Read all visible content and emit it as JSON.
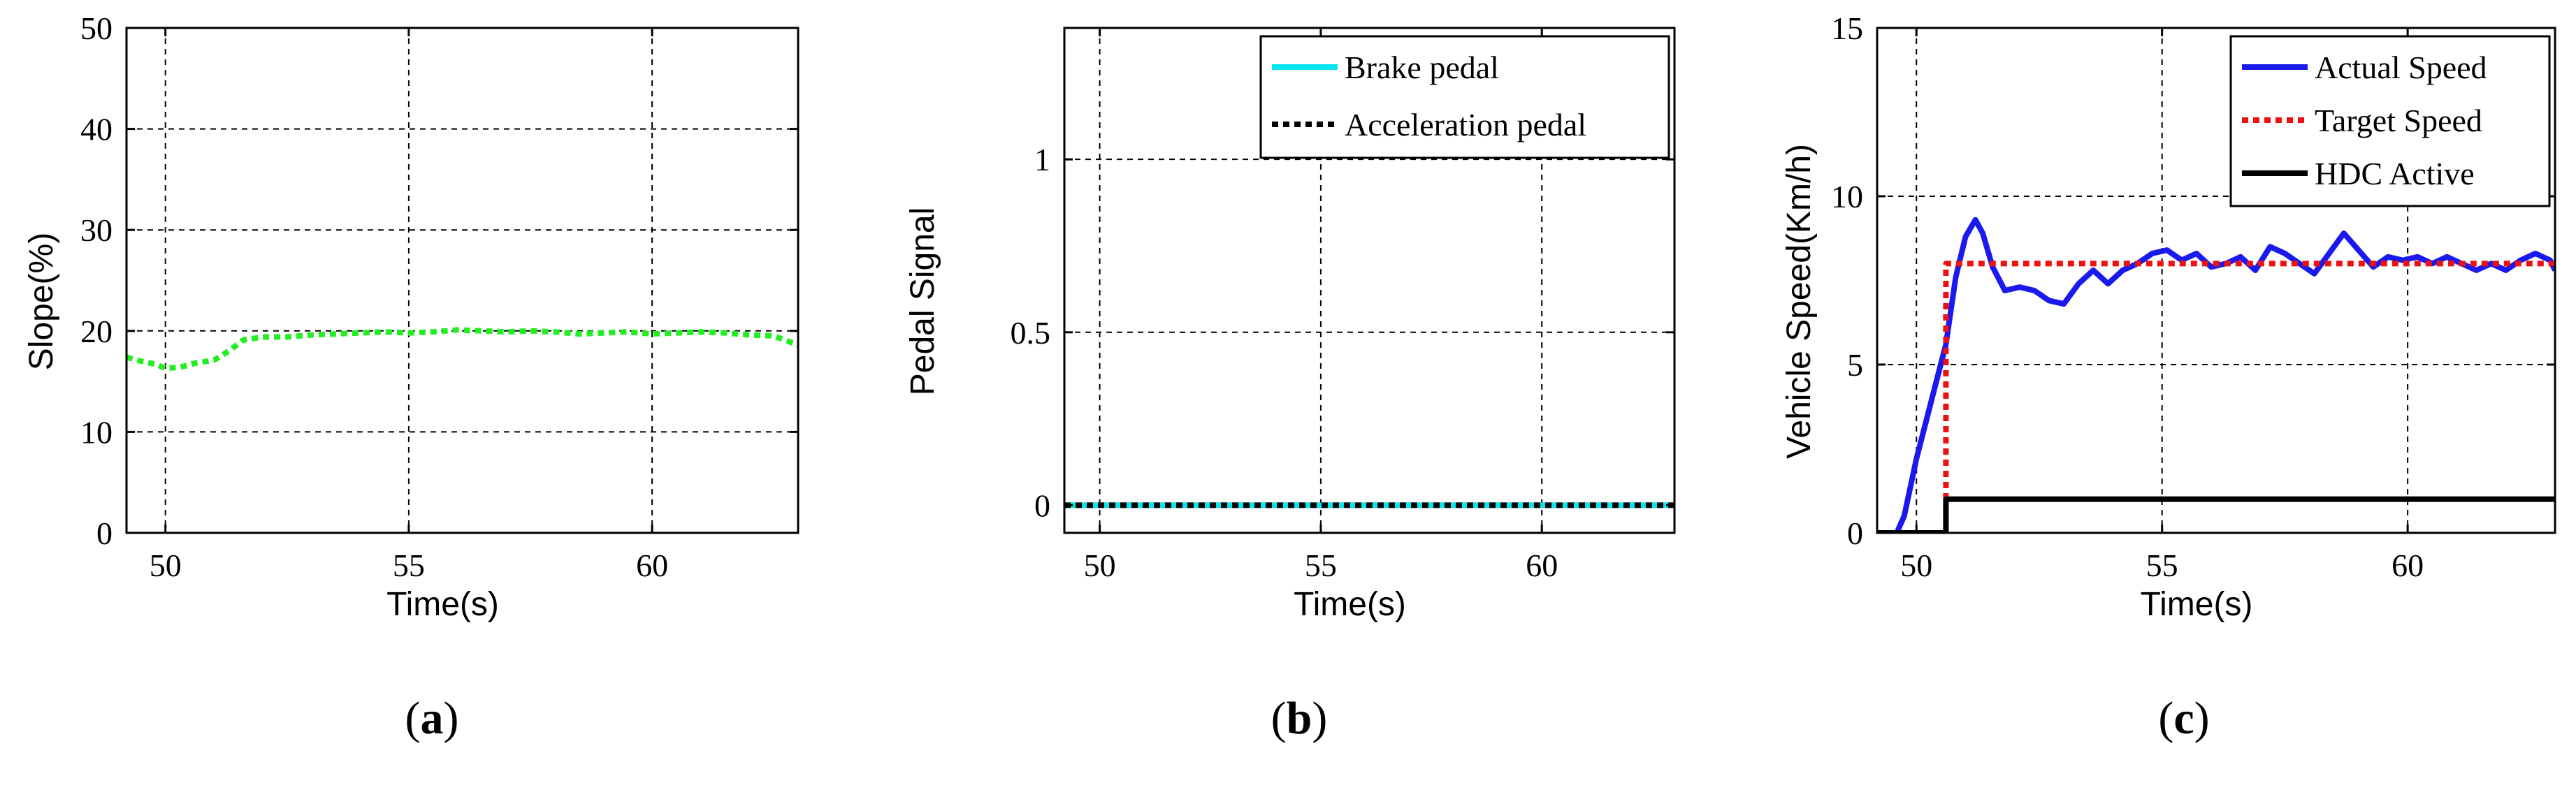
{
  "chart_data": [
    {
      "type": "line",
      "caption": "a",
      "xlabel": "Time(s)",
      "ylabel": "Slope(%)",
      "xlim": [
        49.2,
        63
      ],
      "ylim": [
        0,
        50
      ],
      "xticks": [
        50,
        55,
        60
      ],
      "yticks": [
        0,
        10,
        20,
        30,
        40,
        50
      ],
      "grid": true,
      "legend": null,
      "series": [
        {
          "color": "#22ee22",
          "dash": "dotted",
          "x": [
            49.2,
            49.5,
            49.8,
            50.0,
            50.3,
            50.6,
            51.0,
            51.3,
            51.6,
            52.0,
            52.5,
            53.0,
            53.5,
            54.0,
            54.5,
            55.0,
            55.5,
            56.0,
            56.5,
            57.0,
            57.5,
            58.0,
            58.5,
            59.0,
            59.5,
            60.0,
            60.5,
            61.0,
            61.5,
            62.0,
            62.5,
            63.0
          ],
          "y": [
            17.4,
            17.0,
            16.7,
            16.3,
            16.4,
            16.8,
            17.1,
            18.0,
            19.1,
            19.4,
            19.4,
            19.6,
            19.7,
            19.8,
            19.9,
            19.8,
            19.9,
            20.1,
            20.0,
            19.9,
            20.0,
            19.9,
            19.7,
            19.8,
            19.9,
            19.7,
            19.8,
            19.9,
            19.8,
            19.6,
            19.5,
            18.6
          ]
        }
      ]
    },
    {
      "type": "line",
      "caption": "b",
      "xlabel": "Time(s)",
      "ylabel": "Pedal Signal",
      "xlim": [
        49.2,
        63
      ],
      "ylim": [
        -0.08,
        1.38
      ],
      "xticks": [
        50,
        55,
        60
      ],
      "yticks": [
        0,
        0.5,
        1
      ],
      "ytick_labels": [
        "0",
        "0.5",
        "1"
      ],
      "grid": true,
      "legend": "top-right",
      "series": [
        {
          "name": "Brake pedal",
          "color": "#00e5ee",
          "dash": "solid",
          "x": [
            49.2,
            63
          ],
          "y": [
            0,
            0
          ]
        },
        {
          "name": "Acceleration pedal",
          "color": "#000000",
          "dash": "dotted",
          "x": [
            49.2,
            63
          ],
          "y": [
            0,
            0
          ]
        }
      ]
    },
    {
      "type": "line",
      "caption": "c",
      "xlabel": "Time(s)",
      "ylabel": "Vehicle Speed(Km/h)",
      "xlim": [
        49.2,
        63
      ],
      "ylim": [
        0,
        15
      ],
      "xticks": [
        50,
        55,
        60
      ],
      "yticks": [
        0,
        5,
        10,
        15
      ],
      "grid": true,
      "legend": "top-right",
      "series": [
        {
          "name": "Actual Speed",
          "color": "#1a1aee",
          "dash": "solid",
          "x": [
            49.2,
            49.6,
            49.75,
            50.0,
            50.3,
            50.6,
            50.8,
            51.0,
            51.2,
            51.35,
            51.55,
            51.8,
            52.1,
            52.4,
            52.7,
            53.0,
            53.3,
            53.6,
            53.9,
            54.2,
            54.5,
            54.8,
            55.1,
            55.4,
            55.7,
            56.0,
            56.3,
            56.6,
            56.9,
            57.2,
            57.5,
            57.8,
            58.1,
            58.4,
            58.7,
            59.0,
            59.3,
            59.6,
            59.9,
            60.2,
            60.5,
            60.8,
            61.1,
            61.4,
            61.7,
            62.0,
            62.3,
            62.6,
            62.9,
            63.0
          ],
          "y": [
            0,
            0,
            0.5,
            2.2,
            3.9,
            5.6,
            7.6,
            8.8,
            9.3,
            8.9,
            7.9,
            7.2,
            7.3,
            7.2,
            6.9,
            6.8,
            7.4,
            7.8,
            7.4,
            7.8,
            8.0,
            8.3,
            8.4,
            8.1,
            8.3,
            7.9,
            8.0,
            8.2,
            7.8,
            8.5,
            8.3,
            8.0,
            7.7,
            8.3,
            8.9,
            8.4,
            7.9,
            8.2,
            8.1,
            8.2,
            8.0,
            8.2,
            8.0,
            7.8,
            8.0,
            7.8,
            8.1,
            8.3,
            8.1,
            7.8
          ]
        },
        {
          "name": "Target Speed",
          "color": "#ee1111",
          "dash": "dotted",
          "x": [
            50.6,
            50.6,
            63
          ],
          "y": [
            0,
            8,
            8
          ]
        },
        {
          "name": "HDC Active",
          "color": "#000000",
          "dash": "solid",
          "x": [
            49.2,
            50.6,
            50.6,
            63
          ],
          "y": [
            0,
            0,
            1,
            1
          ]
        }
      ]
    }
  ]
}
